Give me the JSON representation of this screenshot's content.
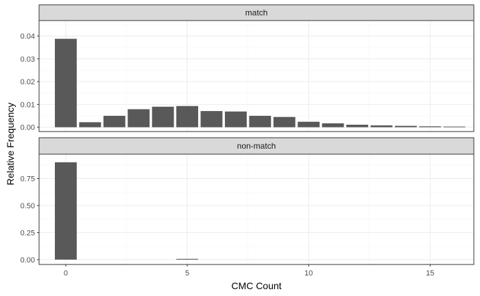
{
  "chart_data": {
    "type": "bar",
    "xlabel": "CMC Count",
    "ylabel": "Relative Frequency",
    "x": [
      0,
      1,
      2,
      3,
      4,
      5,
      6,
      7,
      8,
      9,
      10,
      11,
      12,
      13,
      14,
      15,
      16
    ],
    "x_ticks": [
      0,
      5,
      10,
      15
    ],
    "xlim": [
      -1.1,
      16.8
    ],
    "bar_color": "#595959",
    "panels": [
      {
        "name": "match",
        "values": [
          0.0388,
          0.0022,
          0.005,
          0.0079,
          0.009,
          0.0093,
          0.0071,
          0.0069,
          0.005,
          0.0045,
          0.0024,
          0.0017,
          0.0011,
          0.0008,
          0.0006,
          0.0004,
          0.0003
        ],
        "ylim": [
          -0.0019,
          0.0468
        ],
        "y_ticks": [
          0.0,
          0.01,
          0.02,
          0.03,
          0.04
        ],
        "y_tick_labels": [
          "0.00",
          "0.01",
          "0.02",
          "0.03",
          "0.04"
        ]
      },
      {
        "name": "non-match",
        "values": [
          0.9,
          0,
          0,
          0,
          0,
          0.007,
          0,
          0,
          0,
          0,
          0,
          0,
          0,
          0,
          0,
          0,
          0
        ],
        "ylim": [
          -0.045,
          0.975
        ],
        "y_ticks": [
          0.0,
          0.25,
          0.5,
          0.75
        ],
        "y_tick_labels": [
          "0.00",
          "0.25",
          "0.50",
          "0.75"
        ]
      }
    ]
  }
}
